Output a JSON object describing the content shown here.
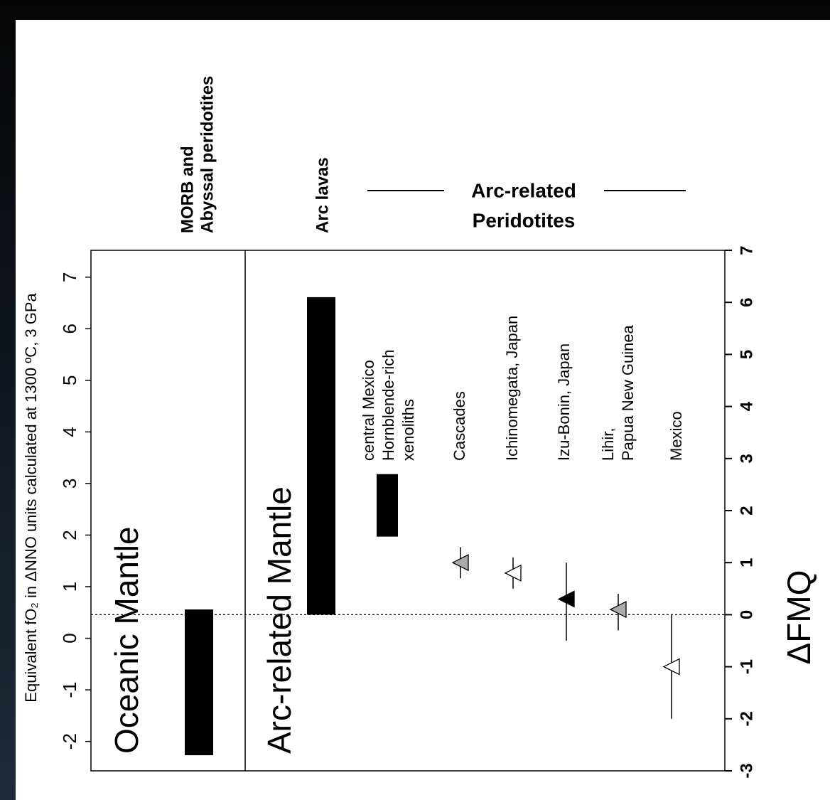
{
  "chart_data": {
    "type": "range",
    "y_label": "ΔFMQ",
    "y2_label": "Equivalent fO₂ in ΔNNO units calculated at 1300 ºC, 3 GPa",
    "ylim": [
      -3,
      7
    ],
    "yticks": [
      -3,
      -2,
      -1,
      0,
      1,
      2,
      3,
      4,
      5,
      6,
      7
    ],
    "y2lim": [
      -2.57,
      7.52
    ],
    "y2ticks": [
      -2,
      -1,
      0,
      1,
      2,
      3,
      4,
      5,
      6,
      7
    ],
    "reference_line": 0,
    "panels": [
      "Oceanic Mantle",
      "Arc-related Mantle"
    ],
    "group_label": [
      "Arc-related",
      "Peridotites"
    ],
    "series": [
      {
        "name": [
          "MORB and",
          "Abyssal peridotites"
        ],
        "low": -2.7,
        "high": 0.1,
        "color": "#000000"
      },
      {
        "name": [
          "Arc lavas"
        ],
        "low": 0.0,
        "high": 6.1,
        "color": "#000000"
      },
      {
        "name": [
          "central Mexico",
          "Hornblende-rich",
          "xenoliths"
        ],
        "low": 1.5,
        "high": 2.7,
        "color": "#000000"
      },
      {
        "name": [
          "Cascades"
        ],
        "low": 0.7,
        "high": 1.3,
        "value": 1.0,
        "color": "#aaaaaa"
      },
      {
        "name": [
          "Ichinomegata, Japan"
        ],
        "low": 0.5,
        "high": 1.1,
        "value": 0.8,
        "color": "#ffffff"
      },
      {
        "name": [
          "Izu-Bonin, Japan"
        ],
        "low": -0.5,
        "high": 1.0,
        "value": 0.3,
        "color": "#000000"
      },
      {
        "name": [
          "Lihir,",
          "Papua New Guinea"
        ],
        "low": -0.3,
        "high": 0.4,
        "value": 0.1,
        "color": "#aaaaaa"
      },
      {
        "name": [
          "Mexico"
        ],
        "low": -2.0,
        "high": 0.0,
        "value": -1.0,
        "color": "#ffffff"
      }
    ]
  }
}
